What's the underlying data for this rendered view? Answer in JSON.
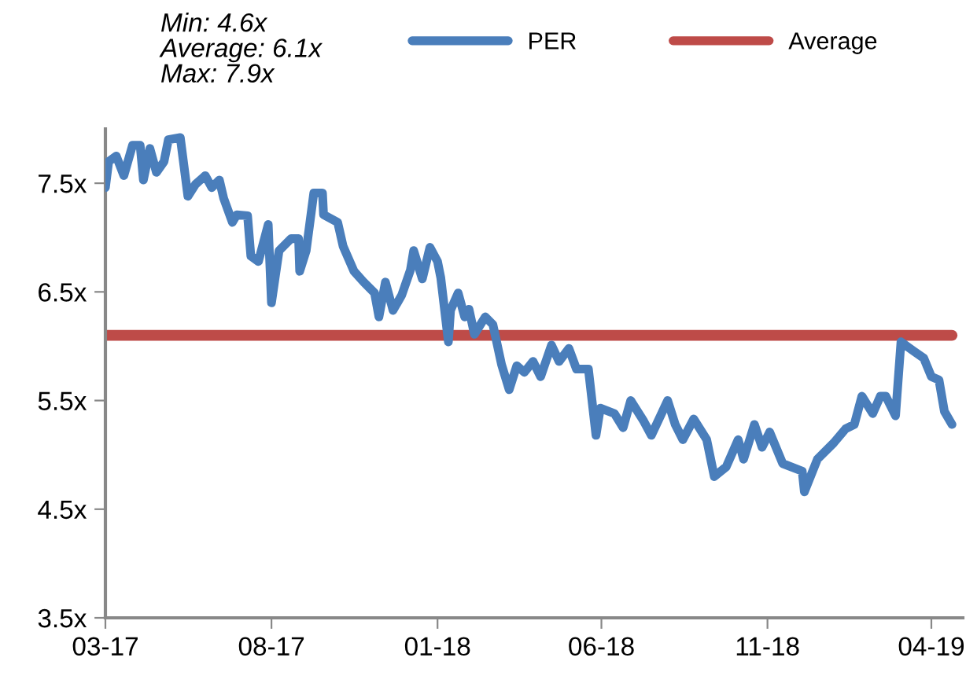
{
  "chart_data": {
    "type": "line",
    "annotations": [
      "Min: 4.6x\nAverage: 6.1x\nMax: 7.9x"
    ],
    "x": [
      "2017-03-01",
      "2017-03-04",
      "2017-03-11",
      "2017-03-18",
      "2017-03-26",
      "2017-04-02",
      "2017-04-05",
      "2017-04-11",
      "2017-04-17",
      "2017-04-24",
      "2017-04-28",
      "2017-05-09",
      "2017-05-16",
      "2017-05-23",
      "2017-06-01",
      "2017-06-07",
      "2017-06-14",
      "2017-06-18",
      "2017-06-26",
      "2017-06-30",
      "2017-07-10",
      "2017-07-13",
      "2017-07-20",
      "2017-07-29",
      "2017-08-01",
      "2017-08-08",
      "2017-08-19",
      "2017-08-26",
      "2017-08-27",
      "2017-09-02",
      "2017-09-09",
      "2017-09-17",
      "2017-09-18",
      "2017-10-01",
      "2017-10-06",
      "2017-10-16",
      "2017-10-25",
      "2017-11-04",
      "2017-11-08",
      "2017-11-14",
      "2017-11-21",
      "2017-11-29",
      "2017-12-07",
      "2017-12-10",
      "2017-12-18",
      "2017-12-25",
      "2018-01-01",
      "2018-01-04",
      "2018-01-11",
      "2018-01-13",
      "2018-01-20",
      "2018-01-26",
      "2018-01-30",
      "2018-02-04",
      "2018-02-14",
      "2018-02-21",
      "2018-03-01",
      "2018-03-08",
      "2018-03-15",
      "2018-03-22",
      "2018-03-30",
      "2018-04-06",
      "2018-04-16",
      "2018-04-23",
      "2018-05-02",
      "2018-05-09",
      "2018-05-20",
      "2018-05-27",
      "2018-05-31",
      "2018-06-13",
      "2018-06-21",
      "2018-06-28",
      "2018-07-10",
      "2018-07-17",
      "2018-08-01",
      "2018-08-08",
      "2018-08-15",
      "2018-08-25",
      "2018-09-06",
      "2018-09-13",
      "2018-09-24",
      "2018-10-05",
      "2018-10-10",
      "2018-10-20",
      "2018-10-27",
      "2018-11-03",
      "2018-11-15",
      "2018-12-03",
      "2018-12-05",
      "2018-12-17",
      "2019-01-01",
      "2019-01-12",
      "2019-01-20",
      "2019-01-27",
      "2019-02-06",
      "2019-02-13",
      "2019-02-18",
      "2019-02-27",
      "2019-03-04",
      "2019-03-15",
      "2019-03-25",
      "2019-04-01",
      "2019-04-08",
      "2019-04-13",
      "2019-04-20"
    ],
    "series": [
      {
        "name": "PER",
        "color": "#4a7ebb",
        "values": [
          7.46,
          7.7,
          7.75,
          7.57,
          7.85,
          7.85,
          7.53,
          7.82,
          7.6,
          7.7,
          7.9,
          7.92,
          7.38,
          7.49,
          7.57,
          7.46,
          7.53,
          7.36,
          7.14,
          7.21,
          7.2,
          6.83,
          6.78,
          7.12,
          6.4,
          6.88,
          6.99,
          6.99,
          6.69,
          6.88,
          7.41,
          7.41,
          7.21,
          7.14,
          6.92,
          6.69,
          6.59,
          6.49,
          6.27,
          6.59,
          6.33,
          6.47,
          6.7,
          6.88,
          6.62,
          6.91,
          6.78,
          6.63,
          6.04,
          6.33,
          6.49,
          6.27,
          6.34,
          6.11,
          6.27,
          6.2,
          5.83,
          5.6,
          5.82,
          5.76,
          5.86,
          5.72,
          6.01,
          5.86,
          5.98,
          5.79,
          5.79,
          5.18,
          5.43,
          5.38,
          5.25,
          5.5,
          5.31,
          5.18,
          5.5,
          5.28,
          5.14,
          5.33,
          5.14,
          4.8,
          4.89,
          5.14,
          4.96,
          5.28,
          5.07,
          5.21,
          4.92,
          4.85,
          4.66,
          4.96,
          5.11,
          5.24,
          5.28,
          5.54,
          5.38,
          5.54,
          5.54,
          5.36,
          6.04,
          5.96,
          5.89,
          5.72,
          5.69,
          5.4,
          5.28
        ]
      },
      {
        "name": "Average",
        "color": "#be4b48",
        "x": [
          "2017-03-01",
          "2019-04-20"
        ],
        "values": [
          6.1,
          6.1
        ]
      }
    ],
    "xlim": [
      "2017-03-01",
      "2019-04-30"
    ],
    "xticks": [
      {
        "value": "2017-03-01",
        "label": "03-17"
      },
      {
        "value": "2017-08-01",
        "label": "08-17"
      },
      {
        "value": "2018-01-01",
        "label": "01-18"
      },
      {
        "value": "2018-06-01",
        "label": "06-18"
      },
      {
        "value": "2018-11-01",
        "label": "11-18"
      },
      {
        "value": "2019-04-01",
        "label": "04-19"
      }
    ],
    "ylim": [
      3.5,
      8.0
    ],
    "yticks": [
      {
        "value": 3.5,
        "label": "3.5x"
      },
      {
        "value": 4.5,
        "label": "4.5x"
      },
      {
        "value": 5.5,
        "label": "5.5x"
      },
      {
        "value": 6.5,
        "label": "6.5x"
      },
      {
        "value": 7.5,
        "label": "7.5x"
      }
    ],
    "grid": false,
    "legend": "top",
    "marker": "none",
    "line_style": "solid"
  }
}
